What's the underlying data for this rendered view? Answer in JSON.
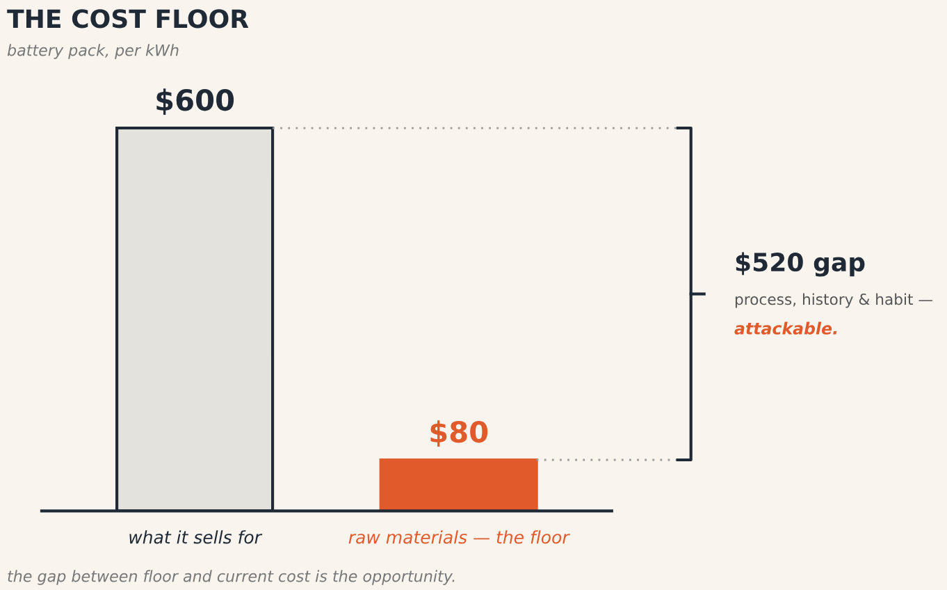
{
  "chart_data": {
    "type": "bar",
    "title": "THE COST FLOOR",
    "subtitle": "battery pack, per kWh",
    "categories": [
      "what it sells for",
      "raw materials — the floor"
    ],
    "values": [
      600,
      80
    ],
    "colors": [
      "#e4e2dc",
      "#e05a2b"
    ],
    "value_labels": [
      "$600",
      "$80"
    ],
    "ref_lines": [
      {
        "axis": "y",
        "value": 600,
        "color": "#9a9a9a",
        "line_style": "dotted"
      },
      {
        "axis": "y",
        "value": 80,
        "color": "#9a9a9a",
        "line_style": "dotted"
      }
    ],
    "annotations": [
      "$520 gap",
      "process, history & habit —",
      "attackable.",
      "the gap between floor and current cost is the opportunity."
    ],
    "grid": false
  }
}
